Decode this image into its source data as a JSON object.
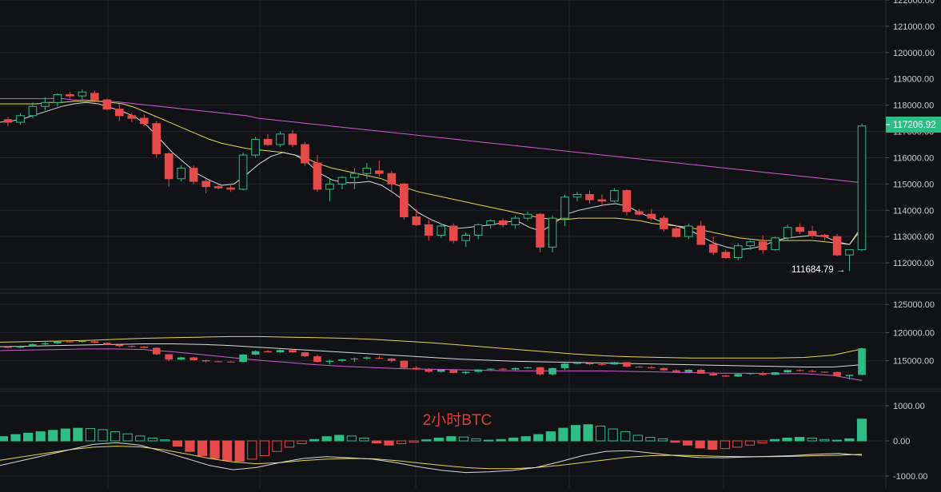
{
  "colors": {
    "background": "#111215",
    "up": "#2ebd85",
    "down": "#e54b4b",
    "ma_white": "#d9d9d9",
    "ma_yellow": "#e8d44d",
    "ma_pink": "#d25ad2",
    "price_tag_bg": "#2ebd85",
    "watermark": "#e53935"
  },
  "watermark": "2小时BTC",
  "price_tag": "117206.92",
  "low_annotation": "111684.79 →",
  "chart_data": [
    {
      "type": "candlestick",
      "panel": "main",
      "ylim": [
        111000,
        122000
      ],
      "yticks": [
        112000,
        113000,
        114000,
        115000,
        116000,
        117000,
        118000,
        119000,
        120000,
        121000,
        122000
      ],
      "ytick_labels": [
        "112000.00",
        "113000.00",
        "114000.00",
        "115000.00",
        "116000.00",
        "117000.00",
        "118000.00",
        "119000.00",
        "120000.00",
        "121000.00",
        "122000.00"
      ],
      "candles": [
        [
          117450,
          117550,
          117200,
          117350
        ],
        [
          117350,
          117700,
          117250,
          117600
        ],
        [
          117600,
          118100,
          117500,
          117950
        ],
        [
          117950,
          118300,
          117800,
          118100
        ],
        [
          118100,
          118450,
          117950,
          118400
        ],
        [
          118400,
          118500,
          118250,
          118350
        ],
        [
          118350,
          118600,
          118200,
          118500
        ],
        [
          118450,
          118550,
          118100,
          118200
        ],
        [
          118200,
          118250,
          117800,
          117850
        ],
        [
          117850,
          118050,
          117400,
          117600
        ],
        [
          117600,
          117700,
          117350,
          117500
        ],
        [
          117500,
          117650,
          117200,
          117300
        ],
        [
          117300,
          117400,
          116000,
          116150
        ],
        [
          116150,
          116200,
          114900,
          115200
        ],
        [
          115200,
          115700,
          115100,
          115600
        ],
        [
          115600,
          115700,
          115000,
          115100
        ],
        [
          115100,
          115200,
          114650,
          114900
        ],
        [
          114900,
          115000,
          114800,
          114850
        ],
        [
          114850,
          114950,
          114700,
          114800
        ],
        [
          114800,
          116200,
          114750,
          116100
        ],
        [
          116100,
          116800,
          116000,
          116700
        ],
        [
          116700,
          116900,
          116450,
          116500
        ],
        [
          116500,
          117000,
          116400,
          116900
        ],
        [
          116900,
          117050,
          116400,
          116500
        ],
        [
          116500,
          116600,
          115700,
          115800
        ],
        [
          115800,
          116100,
          114700,
          114800
        ],
        [
          114800,
          115200,
          114350,
          115000
        ],
        [
          115000,
          115300,
          114800,
          115250
        ],
        [
          115250,
          115600,
          114800,
          115400
        ],
        [
          115400,
          115800,
          115200,
          115600
        ],
        [
          115500,
          115900,
          115300,
          115400
        ],
        [
          115400,
          115500,
          114700,
          115000
        ],
        [
          115000,
          115050,
          113650,
          113750
        ],
        [
          113750,
          114050,
          113400,
          113450
        ],
        [
          113450,
          113650,
          112850,
          113050
        ],
        [
          113050,
          113500,
          112950,
          113400
        ],
        [
          113400,
          113500,
          112750,
          112850
        ],
        [
          112850,
          113150,
          112600,
          113050
        ],
        [
          113050,
          113500,
          112900,
          113450
        ],
        [
          113450,
          113650,
          113300,
          113600
        ],
        [
          113600,
          113700,
          113350,
          113450
        ],
        [
          113450,
          113800,
          113300,
          113700
        ],
        [
          113700,
          113950,
          113600,
          113850
        ],
        [
          113850,
          113900,
          112400,
          112600
        ],
        [
          112600,
          113800,
          112400,
          113700
        ],
        [
          113700,
          114600,
          113400,
          114500
        ],
        [
          114500,
          114700,
          114350,
          114600
        ],
        [
          114600,
          114750,
          114250,
          114400
        ],
        [
          114400,
          114600,
          114150,
          114350
        ],
        [
          114350,
          114850,
          114300,
          114750
        ],
        [
          114750,
          114800,
          113800,
          113950
        ],
        [
          113950,
          114050,
          113800,
          113850
        ],
        [
          113850,
          114050,
          113600,
          113700
        ],
        [
          113700,
          113800,
          113200,
          113300
        ],
        [
          113300,
          113450,
          112950,
          113000
        ],
        [
          113000,
          113500,
          112900,
          113400
        ],
        [
          113400,
          113600,
          112800,
          112700
        ],
        [
          112700,
          113000,
          112300,
          112400
        ],
        [
          112400,
          112500,
          112150,
          112200
        ],
        [
          112200,
          112750,
          112100,
          112650
        ],
        [
          112650,
          112850,
          112500,
          112800
        ],
        [
          112800,
          113050,
          112350,
          112500
        ],
        [
          112500,
          113000,
          112450,
          112950
        ],
        [
          112950,
          113450,
          112850,
          113350
        ],
        [
          113350,
          113500,
          113100,
          113200
        ],
        [
          113200,
          113400,
          112950,
          113050
        ],
        [
          113050,
          113100,
          112850,
          113000
        ],
        [
          113000,
          113100,
          112250,
          112300
        ],
        [
          112300,
          112500,
          111684.79,
          112500
        ],
        [
          112500,
          117300,
          112450,
          117206.92
        ]
      ],
      "ma_white": [
        117350,
        117400,
        117500,
        117650,
        117800,
        117950,
        118050,
        118100,
        118050,
        117900,
        117750,
        117550,
        117200,
        116700,
        116200,
        115800,
        115400,
        115150,
        114950,
        115000,
        115350,
        115750,
        116050,
        116200,
        116100,
        115800,
        115400,
        115150,
        115050,
        115050,
        115100,
        114950,
        114650,
        114300,
        113900,
        113650,
        113450,
        113300,
        113350,
        113400,
        113450,
        113550,
        113600,
        113350,
        113200,
        113500,
        113850,
        114000,
        114100,
        114200,
        114250,
        114150,
        113900,
        113700,
        113500,
        113400,
        113250,
        113000,
        112750,
        112600,
        112500,
        112550,
        112650,
        112850,
        112950,
        113000,
        113050,
        113000,
        112800,
        112700,
        113400
      ],
      "ma_yellow": [
        118050,
        118050,
        118050,
        118050,
        118100,
        118100,
        118150,
        118150,
        118150,
        118100,
        118050,
        117900,
        117700,
        117500,
        117300,
        117100,
        116900,
        116700,
        116550,
        116450,
        116350,
        116300,
        116250,
        116200,
        116100,
        115950,
        115750,
        115600,
        115500,
        115400,
        115300,
        115200,
        115000,
        114850,
        114700,
        114600,
        114500,
        114400,
        114300,
        114200,
        114100,
        114000,
        113900,
        113800,
        113700,
        113650,
        113650,
        113700,
        113700,
        113700,
        113700,
        113650,
        113600,
        113500,
        113450,
        113400,
        113350,
        113250,
        113150,
        113050,
        112950,
        112900,
        112850,
        112850,
        112850,
        112850,
        112850,
        112800,
        112750,
        112700,
        113300
      ],
      "ma_pink": [
        118250,
        118250,
        118250,
        118250,
        118250,
        118250,
        118200,
        118200,
        118150,
        118150,
        118100,
        118050,
        118000,
        117950,
        117900,
        117850,
        117800,
        117750,
        117700,
        117650,
        117600,
        117500,
        117450,
        117400,
        117350,
        117300,
        117250,
        117200,
        117150,
        117100,
        117050,
        117000,
        116950,
        116900,
        116850,
        116800,
        116750,
        116700,
        116650,
        116600,
        116550,
        116500,
        116450,
        116400,
        116350,
        116300,
        116250,
        116200,
        116150,
        116100,
        116050,
        116000,
        115950,
        115900,
        115850,
        115800,
        115750,
        115700,
        115650,
        115600,
        115550,
        115500,
        115450,
        115400,
        115350,
        115300,
        115250,
        115200,
        115150,
        115100,
        115050
      ]
    },
    {
      "type": "candlestick",
      "panel": "middle",
      "ylim": [
        110000,
        127000
      ],
      "yticks": [
        115000,
        120000,
        125000
      ],
      "ytick_labels": [
        "115000.00",
        "120000.00",
        "125000.00"
      ],
      "band_upper": [
        118300,
        118400,
        118500,
        118600,
        118800,
        119000,
        119100,
        119200,
        119300,
        119300,
        119200,
        119100,
        119000,
        118800,
        118500,
        118200,
        117800,
        117400,
        117000,
        116600,
        116200,
        115900,
        115700,
        115600,
        115500,
        115500,
        115500,
        115500,
        115600,
        116000,
        117100
      ],
      "band_mid": [
        117500,
        117600,
        117700,
        117800,
        117900,
        118000,
        118000,
        117900,
        117700,
        117400,
        117100,
        116800,
        116500,
        116200,
        115900,
        115600,
        115300,
        115100,
        114900,
        114800,
        114700,
        114600,
        114500,
        114400,
        114300,
        114200,
        114100,
        114000,
        113900,
        113900,
        114300
      ],
      "band_lower": [
        116800,
        116900,
        117000,
        117100,
        117100,
        117000,
        116600,
        116100,
        115600,
        115100,
        114700,
        114300,
        114000,
        113800,
        113600,
        113500,
        113400,
        113300,
        113200,
        113200,
        113200,
        113200,
        113100,
        113000,
        112900,
        112800,
        112800,
        112700,
        112700,
        112400,
        111500
      ]
    },
    {
      "type": "bar",
      "panel": "macd",
      "ylim": [
        -1000,
        1000
      ],
      "yticks": [
        -1000,
        0,
        1000
      ],
      "ytick_labels": [
        "-1000.00",
        "0.00",
        "1000.00"
      ],
      "histogram": [
        120,
        180,
        220,
        260,
        300,
        340,
        360,
        350,
        320,
        260,
        200,
        140,
        80,
        30,
        -150,
        -300,
        -420,
        -500,
        -560,
        -580,
        -520,
        -420,
        -300,
        -180,
        -80,
        40,
        120,
        160,
        140,
        80,
        -60,
        -120,
        -80,
        -40,
        30,
        80,
        120,
        110,
        60,
        20,
        40,
        80,
        120,
        180,
        260,
        360,
        440,
        460,
        420,
        340,
        260,
        160,
        100,
        60,
        -40,
        -120,
        -200,
        -240,
        -220,
        -180,
        -120,
        -60,
        40,
        80,
        100,
        80,
        40,
        20,
        60,
        620
      ],
      "dif_white": [
        -700,
        -550,
        -400,
        -250,
        -100,
        -50,
        -120,
        -300,
        -500,
        -700,
        -820,
        -760,
        -620,
        -500,
        -450,
        -480,
        -520,
        -620,
        -740,
        -840,
        -900,
        -880,
        -840,
        -760,
        -600,
        -420,
        -300,
        -280,
        -350,
        -420,
        -470,
        -480,
        -460,
        -440,
        -420,
        -380,
        -360,
        -410
      ],
      "dea_yellow": [
        -550,
        -450,
        -350,
        -250,
        -180,
        -150,
        -170,
        -250,
        -370,
        -500,
        -600,
        -650,
        -620,
        -560,
        -520,
        -500,
        -510,
        -560,
        -630,
        -700,
        -760,
        -790,
        -790,
        -760,
        -700,
        -620,
        -540,
        -460,
        -420,
        -410,
        -420,
        -440,
        -450,
        -450,
        -440,
        -420,
        -410,
        -380
      ]
    }
  ]
}
